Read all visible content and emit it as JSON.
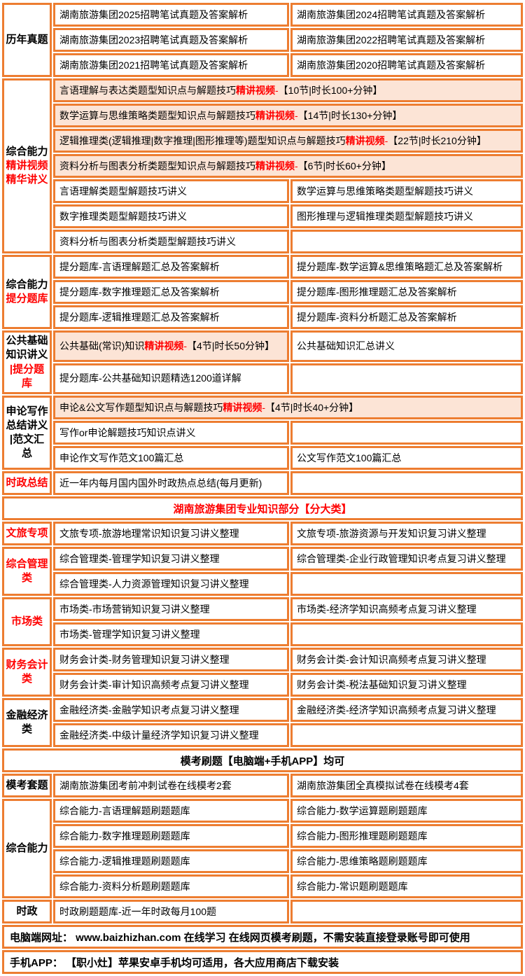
{
  "colors": {
    "border": "#ED7D31",
    "highlight_bg": "#FCE4D6",
    "accent_red": "#FF0000",
    "text": "#000000",
    "bg": "#FFFFFF"
  },
  "table": {
    "sections": [
      {
        "type": "group",
        "name": "past-papers",
        "label": [
          {
            "t": "历年真题"
          }
        ],
        "rows": [
          {
            "layout": "two",
            "cells": [
              [
                {
                  "t": "湖南旅游集团2025招聘笔试真题及答案解析"
                }
              ],
              [
                {
                  "t": "湖南旅游集团2024招聘笔试真题及答案解析"
                }
              ]
            ]
          },
          {
            "layout": "two",
            "cells": [
              [
                {
                  "t": "湖南旅游集团2023招聘笔试真题及答案解析"
                }
              ],
              [
                {
                  "t": "湖南旅游集团2022招聘笔试真题及答案解析"
                }
              ]
            ]
          },
          {
            "layout": "two",
            "cells": [
              [
                {
                  "t": "湖南旅游集团2021招聘笔试真题及答案解析"
                }
              ],
              [
                {
                  "t": "湖南旅游集团2020招聘笔试真题及答案解析"
                }
              ]
            ]
          }
        ]
      },
      {
        "type": "group",
        "name": "comprehensive-video-lectures",
        "label": [
          {
            "t": "综合能力"
          },
          {
            "t": "精讲视频",
            "red": true
          },
          {
            "t": "精华讲义",
            "red": true
          }
        ],
        "rows": [
          {
            "layout": "span",
            "pink": [
              true
            ],
            "cells": [
              [
                {
                  "t": "言语理解与表达类题型知识点与解题技巧"
                },
                {
                  "t": "精讲视频",
                  "red": true,
                  "bold": true
                },
                {
                  "t": " - ",
                  "red": true
                },
                {
                  "t": "【10节|时长100+分钟】"
                }
              ]
            ]
          },
          {
            "layout": "span",
            "pink": [
              true
            ],
            "cells": [
              [
                {
                  "t": "数学运算与思维策略类题型知识点与解题技巧"
                },
                {
                  "t": "精讲视频",
                  "red": true,
                  "bold": true
                },
                {
                  "t": " - ",
                  "red": true
                },
                {
                  "t": "【14节|时长130+分钟】"
                }
              ]
            ]
          },
          {
            "layout": "span",
            "pink": [
              true
            ],
            "cells": [
              [
                {
                  "t": "逻辑推理类(逻辑推理|数字推理|图形推理等)题型知识点与解题技巧"
                },
                {
                  "t": "精讲视频",
                  "red": true,
                  "bold": true
                },
                {
                  "t": " - ",
                  "red": true
                },
                {
                  "t": "【22节|时长210分钟】"
                }
              ]
            ]
          },
          {
            "layout": "span",
            "pink": [
              true
            ],
            "cells": [
              [
                {
                  "t": "资料分析与图表分析类题型知识点与解题技巧"
                },
                {
                  "t": "精讲视频",
                  "red": true,
                  "bold": true
                },
                {
                  "t": " - ",
                  "red": true
                },
                {
                  "t": "【6节|时长60+分钟】"
                }
              ]
            ]
          },
          {
            "layout": "two",
            "cells": [
              [
                {
                  "t": "言语理解类题型解题技巧讲义"
                }
              ],
              [
                {
                  "t": "数学运算与思维策略类题型解题技巧讲义"
                }
              ]
            ]
          },
          {
            "layout": "two",
            "cells": [
              [
                {
                  "t": "数字推理类题型解题技巧讲义"
                }
              ],
              [
                {
                  "t": "图形推理与逻辑推理类题型解题技巧讲义"
                }
              ]
            ]
          },
          {
            "layout": "two",
            "cells": [
              [
                {
                  "t": "资料分析与图表分析类题型解题技巧讲义"
                }
              ],
              []
            ]
          }
        ]
      },
      {
        "type": "group",
        "name": "comprehensive-question-bank",
        "label": [
          {
            "t": "综合能力"
          },
          {
            "t": "提分题库",
            "red": true
          }
        ],
        "rows": [
          {
            "layout": "two",
            "cells": [
              [
                {
                  "t": "提分题库-言语理解题汇总及答案解析"
                }
              ],
              [
                {
                  "t": "提分题库-数学运算&思维策略题汇总及答案解析"
                }
              ]
            ]
          },
          {
            "layout": "two",
            "cells": [
              [
                {
                  "t": "提分题库-数字推理题汇总及答案解析"
                }
              ],
              [
                {
                  "t": "提分题库-图形推理题汇总及答案解析"
                }
              ]
            ]
          },
          {
            "layout": "two",
            "cells": [
              [
                {
                  "t": "提分题库-逻辑推理题汇总及答案解析"
                }
              ],
              [
                {
                  "t": "提分题库-资料分析题汇总及答案解析"
                }
              ]
            ]
          }
        ]
      },
      {
        "type": "group",
        "name": "public-basic-knowledge",
        "label": [
          {
            "t": "公共基础"
          },
          {
            "t": "知识讲义"
          },
          {
            "t": "|提分题库",
            "red": true
          }
        ],
        "rows": [
          {
            "layout": "two",
            "pink": [
              true,
              false
            ],
            "cells": [
              [
                {
                  "t": "公共基础(常识)知识"
                },
                {
                  "t": "精讲视频",
                  "red": true,
                  "bold": true
                },
                {
                  "t": " - ",
                  "red": true
                },
                {
                  "t": "【4节|时长50分钟】"
                }
              ],
              [
                {
                  "t": "公共基础知识汇总讲义"
                }
              ]
            ]
          },
          {
            "layout": "two",
            "cells": [
              [
                {
                  "t": "提分题库-公共基础知识题精选1200道详解"
                }
              ],
              []
            ]
          }
        ]
      },
      {
        "type": "group",
        "name": "essay-writing",
        "label": [
          {
            "t": "申论写作"
          },
          {
            "t": "总结讲义"
          },
          {
            "t": "|范文汇总"
          }
        ],
        "rows": [
          {
            "layout": "span",
            "pink": [
              true
            ],
            "cells": [
              [
                {
                  "t": "申论&公文写作题型知识点与解题技巧"
                },
                {
                  "t": "精讲视频",
                  "red": true,
                  "bold": true
                },
                {
                  "t": " - ",
                  "red": true
                },
                {
                  "t": "【4节|时长40+分钟】"
                }
              ]
            ]
          },
          {
            "layout": "two",
            "cells": [
              [
                {
                  "t": "写作or申论解题技巧知识点讲义"
                }
              ],
              []
            ]
          },
          {
            "layout": "two",
            "cells": [
              [
                {
                  "t": "申论作文写作范文100篇汇总"
                }
              ],
              [
                {
                  "t": "公文写作范文100篇汇总"
                }
              ]
            ]
          }
        ]
      },
      {
        "type": "group",
        "name": "current-affairs-summary",
        "label": [
          {
            "t": "时政总结",
            "red": true
          }
        ],
        "rows": [
          {
            "layout": "two",
            "cells": [
              [
                {
                  "t": "近一年内每月国内国外时政热点总结(每月更新)"
                }
              ],
              []
            ]
          }
        ]
      },
      {
        "type": "banner",
        "name": "professional-knowledge-header",
        "align": "center",
        "red": true,
        "text": "湖南旅游集团专业知识部分【分大类】"
      },
      {
        "type": "group",
        "name": "culture-tourism",
        "label": [
          {
            "t": "文旅专项",
            "red": true
          }
        ],
        "rows": [
          {
            "layout": "two",
            "cells": [
              [
                {
                  "t": "文旅专项-旅游地理常识知识复习讲义整理"
                }
              ],
              [
                {
                  "t": "文旅专项-旅游资源与开发知识复习讲义整理"
                }
              ]
            ]
          }
        ]
      },
      {
        "type": "group",
        "name": "general-management",
        "label": [
          {
            "t": "综合管理",
            "red": true
          },
          {
            "t": "类",
            "red": true
          }
        ],
        "rows": [
          {
            "layout": "two",
            "cells": [
              [
                {
                  "t": "综合管理类-管理学知识复习讲义整理"
                }
              ],
              [
                {
                  "t": "综合管理类-企业行政管理知识考点复习讲义整理"
                }
              ]
            ]
          },
          {
            "layout": "two",
            "cells": [
              [
                {
                  "t": "综合管理类-人力资源管理知识复习讲义整理"
                }
              ],
              []
            ]
          }
        ]
      },
      {
        "type": "group",
        "name": "marketing",
        "label": [
          {
            "t": "市场类",
            "red": true
          }
        ],
        "rows": [
          {
            "layout": "two",
            "cells": [
              [
                {
                  "t": "市场类-市场营销知识复习讲义整理"
                }
              ],
              [
                {
                  "t": "市场类-经济学知识高频考点复习讲义整理"
                }
              ]
            ]
          },
          {
            "layout": "two",
            "cells": [
              [
                {
                  "t": "市场类-管理学知识复习讲义整理"
                }
              ],
              []
            ]
          }
        ]
      },
      {
        "type": "group",
        "name": "finance-accounting",
        "label": [
          {
            "t": "财务会计",
            "red": true
          },
          {
            "t": "类",
            "red": true
          }
        ],
        "rows": [
          {
            "layout": "two",
            "cells": [
              [
                {
                  "t": "财务会计类-财务管理知识复习讲义整理"
                }
              ],
              [
                {
                  "t": "财务会计类-会计知识高频考点复习讲义整理"
                }
              ]
            ]
          },
          {
            "layout": "two",
            "cells": [
              [
                {
                  "t": "财务会计类-审计知识高频考点复习讲义整理"
                }
              ],
              [
                {
                  "t": "财务会计类-税法基础知识复习讲义整理"
                }
              ]
            ]
          }
        ]
      },
      {
        "type": "group",
        "name": "finance-economics",
        "label": [
          {
            "t": "金融经济"
          },
          {
            "t": "类"
          }
        ],
        "rows": [
          {
            "layout": "two",
            "cells": [
              [
                {
                  "t": "金融经济类-金融学知识考点复习讲义整理"
                }
              ],
              [
                {
                  "t": "金融经济类-经济学知识高频考点复习讲义整理"
                }
              ]
            ]
          },
          {
            "layout": "two",
            "cells": [
              [
                {
                  "t": "金融经济类-中级计量经济学知识复习讲义整理"
                }
              ],
              []
            ]
          }
        ]
      },
      {
        "type": "banner",
        "name": "mock-exam-header",
        "align": "center",
        "red": false,
        "text": "模考刷题【电脑端+手机APP】均可"
      },
      {
        "type": "group",
        "name": "mock-exam-sets",
        "label": [
          {
            "t": "模考套题"
          }
        ],
        "rows": [
          {
            "layout": "two",
            "cells": [
              [
                {
                  "t": "湖南旅游集团考前冲刺试卷在线模考2套"
                }
              ],
              [
                {
                  "t": "湖南旅游集团全真模拟试卷在线模考4套"
                }
              ]
            ]
          }
        ]
      },
      {
        "type": "group",
        "name": "comprehensive-drill-bank",
        "label": [
          {
            "t": "综合能力"
          }
        ],
        "rows": [
          {
            "layout": "two",
            "cells": [
              [
                {
                  "t": "综合能力-言语理解题刷题题库"
                }
              ],
              [
                {
                  "t": "综合能力-数学运算题刷题题库"
                }
              ]
            ]
          },
          {
            "layout": "two",
            "cells": [
              [
                {
                  "t": "综合能力-数字推理题刷题题库"
                }
              ],
              [
                {
                  "t": "综合能力-图形推理题刷题题库"
                }
              ]
            ]
          },
          {
            "layout": "two",
            "cells": [
              [
                {
                  "t": "综合能力-逻辑推理题刷题题库"
                }
              ],
              [
                {
                  "t": "综合能力-思维策略题刷题题库"
                }
              ]
            ]
          },
          {
            "layout": "two",
            "cells": [
              [
                {
                  "t": "综合能力-资料分析题刷题题库"
                }
              ],
              [
                {
                  "t": "综合能力-常识题刷题题库"
                }
              ]
            ]
          }
        ]
      },
      {
        "type": "group",
        "name": "current-affairs-drill",
        "label": [
          {
            "t": "时政"
          }
        ],
        "rows": [
          {
            "layout": "two",
            "cells": [
              [
                {
                  "t": "时政刷题题库-近一年时政每月100题"
                }
              ],
              []
            ]
          }
        ]
      },
      {
        "type": "banner",
        "name": "pc-website-note",
        "align": "left",
        "red": false,
        "text": "电脑端网址： www.baizhizhan.com 在线学习 在线网页模考刷题，不需安装直接登录账号即可使用"
      },
      {
        "type": "banner",
        "name": "mobile-app-note",
        "align": "left",
        "red": false,
        "text": "手机APP： 【职小灶】苹果安卓手机均可适用，各大应用商店下载安装"
      }
    ]
  }
}
